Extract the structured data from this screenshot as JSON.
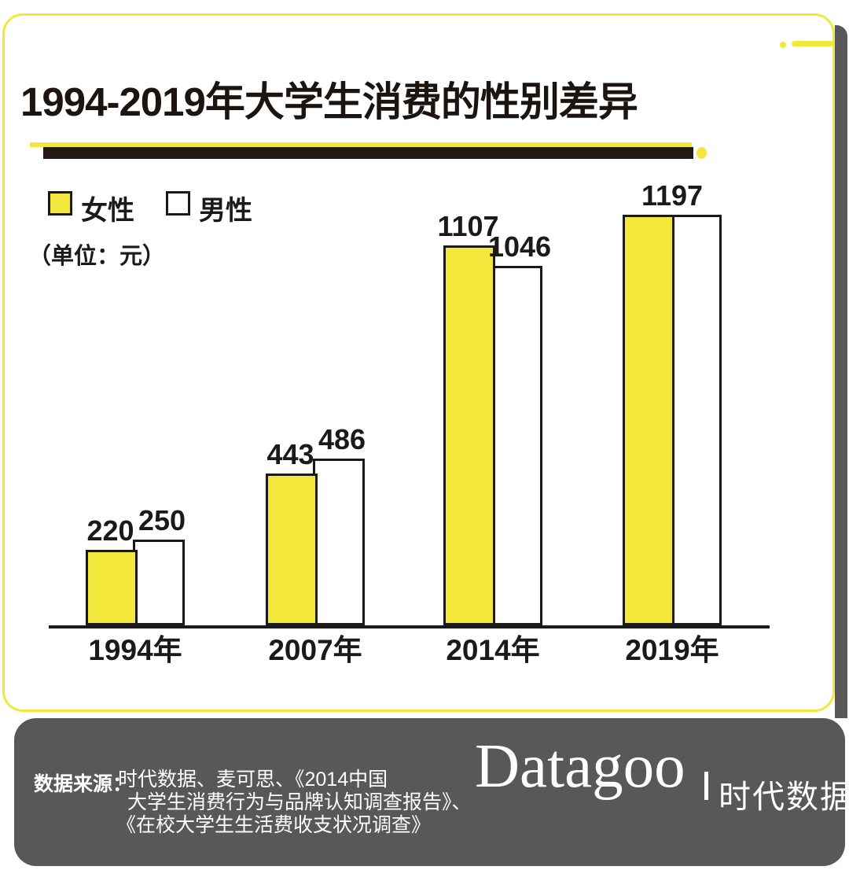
{
  "card": {
    "border_color": "#F3E73C",
    "shadow_color": "#595757"
  },
  "chart_data": {
    "type": "bar",
    "title": "1994-2019年大学生消费的性别差异",
    "unit_note": "（单位：元）",
    "categories": [
      "1994年",
      "2007年",
      "2014年",
      "2019年"
    ],
    "series": [
      {
        "name": "女性",
        "color": "#F3E73C",
        "values": [
          220,
          443,
          1107,
          1197
        ]
      },
      {
        "name": "男性",
        "color": "#FFFFFF",
        "values": [
          250,
          486,
          1046,
          1197
        ]
      }
    ],
    "bar_border_color": "#1A1A1A",
    "legend_position": "top-left",
    "grid": false,
    "xlabel": "",
    "ylabel": "",
    "ylim": [
      0,
      1250
    ],
    "notes": "2019年 pair shares a single value label 1197 because both series are equal"
  },
  "footer": {
    "background": "#595757",
    "source_label": "数据来源：",
    "source_lines": [
      "时代数据、麦可思、《2014中国",
      "大学生消费行为与品牌认知调查报告》、",
      "《在校大学生生活费收支状况调查》"
    ],
    "logo_text": "Datagoo",
    "logo_separator": "丨",
    "logo_cjk": "时代数据"
  }
}
